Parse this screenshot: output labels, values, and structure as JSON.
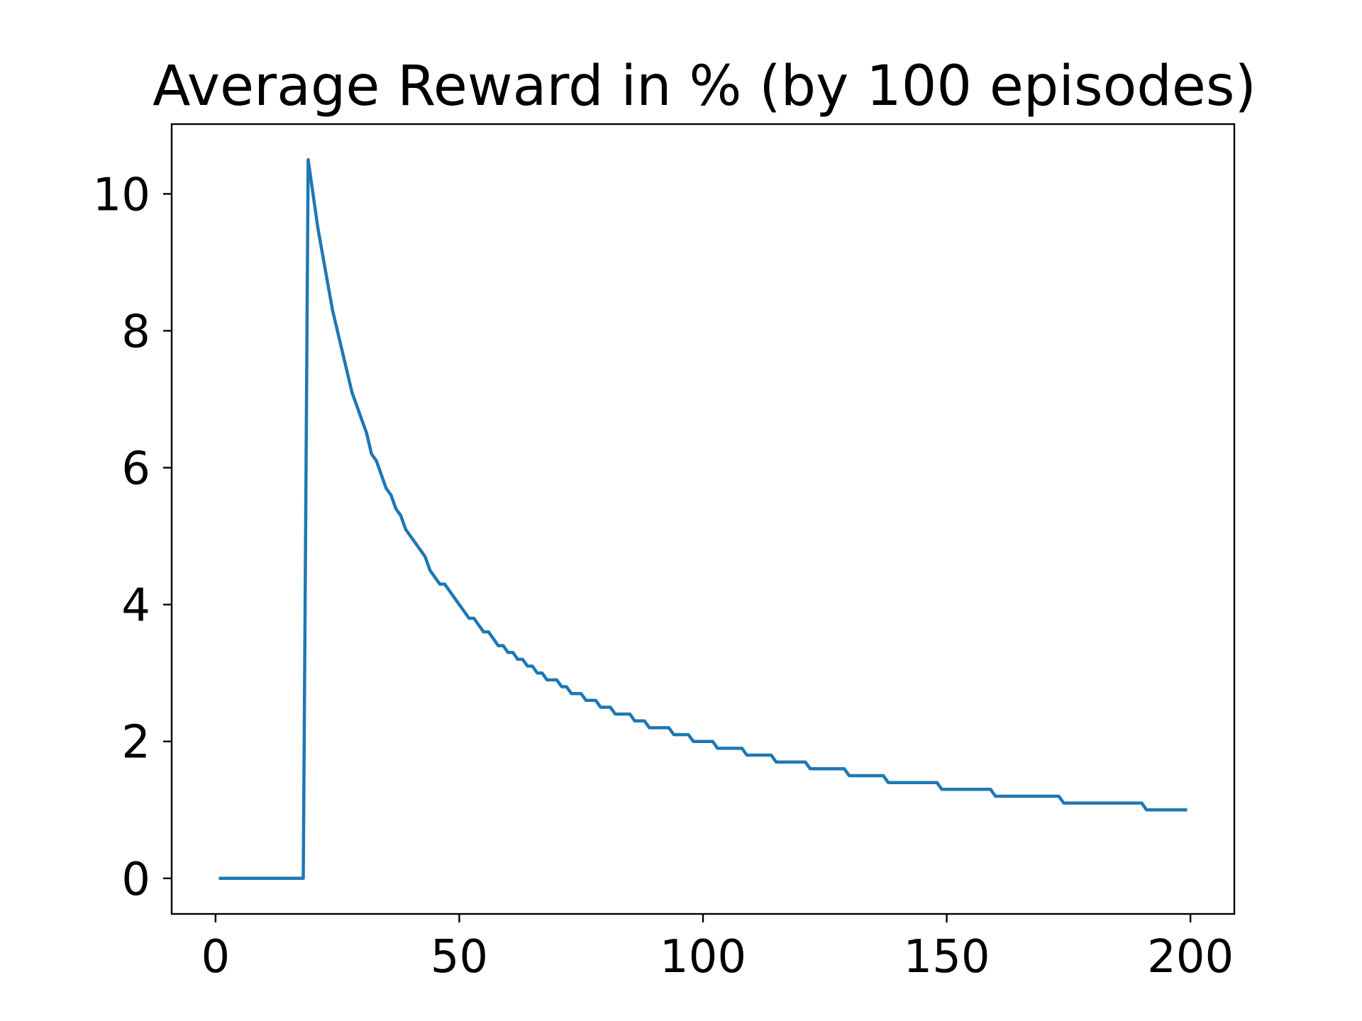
{
  "chart_data": {
    "type": "line",
    "title": "Average Reward in % (by 100 episodes)",
    "xlabel": "",
    "ylabel": "",
    "xlim": [
      -9,
      209
    ],
    "ylim": [
      -0.52,
      11.02
    ],
    "xticks": [
      0,
      50,
      100,
      150,
      200
    ],
    "yticks": [
      0,
      2,
      4,
      6,
      8,
      10
    ],
    "xtick_labels": [
      "0",
      "50",
      "100",
      "150",
      "200"
    ],
    "ytick_labels": [
      "0",
      "2",
      "4",
      "6",
      "8",
      "10"
    ],
    "grid": false,
    "legend": "none",
    "series": [
      {
        "color": "#1f77b4",
        "points": [
          [
            1,
            0
          ],
          [
            18,
            0
          ],
          [
            19,
            10.5
          ],
          [
            21,
            9.5
          ],
          [
            24,
            8.3
          ],
          [
            28,
            7.1
          ],
          [
            31,
            6.5
          ],
          [
            32,
            6.2
          ],
          [
            33,
            6.1
          ],
          [
            35,
            5.7
          ],
          [
            36,
            5.6
          ],
          [
            37,
            5.4
          ],
          [
            38,
            5.3
          ],
          [
            39,
            5.1
          ],
          [
            43,
            4.7
          ],
          [
            44,
            4.5
          ],
          [
            46,
            4.3
          ],
          [
            47,
            4.3
          ],
          [
            52,
            3.8
          ],
          [
            53,
            3.8
          ],
          [
            55,
            3.6
          ],
          [
            56,
            3.6
          ],
          [
            58,
            3.4
          ],
          [
            59,
            3.4
          ],
          [
            60,
            3.3
          ],
          [
            61,
            3.3
          ],
          [
            62,
            3.2
          ],
          [
            63,
            3.2
          ],
          [
            64,
            3.1
          ],
          [
            65,
            3.1
          ],
          [
            66,
            3.0
          ],
          [
            67,
            3.0
          ],
          [
            68,
            2.9
          ],
          [
            70,
            2.9
          ],
          [
            71,
            2.8
          ],
          [
            72,
            2.8
          ],
          [
            73,
            2.7
          ],
          [
            75,
            2.7
          ],
          [
            76,
            2.6
          ],
          [
            78,
            2.6
          ],
          [
            79,
            2.5
          ],
          [
            81,
            2.5
          ],
          [
            82,
            2.4
          ],
          [
            85,
            2.4
          ],
          [
            86,
            2.3
          ],
          [
            88,
            2.3
          ],
          [
            89,
            2.2
          ],
          [
            93,
            2.2
          ],
          [
            94,
            2.1
          ],
          [
            97,
            2.1
          ],
          [
            98,
            2.0
          ],
          [
            102,
            2.0
          ],
          [
            103,
            1.9
          ],
          [
            108,
            1.9
          ],
          [
            109,
            1.8
          ],
          [
            114,
            1.8
          ],
          [
            115,
            1.7
          ],
          [
            121,
            1.7
          ],
          [
            122,
            1.6
          ],
          [
            129,
            1.6
          ],
          [
            130,
            1.5
          ],
          [
            137,
            1.5
          ],
          [
            138,
            1.4
          ],
          [
            148,
            1.4
          ],
          [
            149,
            1.3
          ],
          [
            159,
            1.3
          ],
          [
            160,
            1.2
          ],
          [
            173,
            1.2
          ],
          [
            174,
            1.1
          ],
          [
            190,
            1.1
          ],
          [
            191,
            1.0
          ],
          [
            199,
            1.0
          ]
        ]
      }
    ]
  }
}
